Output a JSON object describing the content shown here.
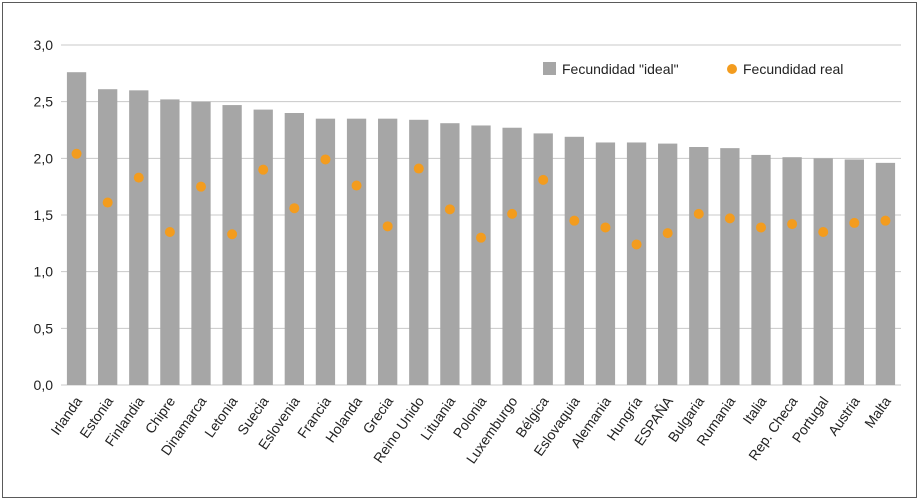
{
  "chart_data": {
    "type": "bar",
    "categories": [
      "Irlanda",
      "Estonia",
      "Finlandia",
      "Chipre",
      "Dinamarca",
      "Letonia",
      "Suecia",
      "Eslovenia",
      "Francia",
      "Holanda",
      "Grecia",
      "Reino Unido",
      "Lituania",
      "Polonia",
      "Luxemburgo",
      "Bélgica",
      "Eslovaquia",
      "Alemania",
      "Hungría",
      "ESPAÑA",
      "Bulgaria",
      "Rumania",
      "Italia",
      "Rep. Checa",
      "Portugal",
      "Austria",
      "Malta"
    ],
    "series": [
      {
        "name": "Fecundidad \"ideal\"",
        "type": "bar",
        "color": "#a6a6a6",
        "values": [
          2.76,
          2.61,
          2.6,
          2.52,
          2.5,
          2.47,
          2.43,
          2.4,
          2.35,
          2.35,
          2.35,
          2.34,
          2.31,
          2.29,
          2.27,
          2.22,
          2.19,
          2.14,
          2.14,
          2.13,
          2.1,
          2.09,
          2.03,
          2.01,
          2.0,
          1.99,
          1.96
        ]
      },
      {
        "name": "Fecundidad real",
        "type": "scatter",
        "color": "#f39c1e",
        "values": [
          2.04,
          1.61,
          1.83,
          1.35,
          1.75,
          1.33,
          1.9,
          1.56,
          1.99,
          1.76,
          1.4,
          1.91,
          1.55,
          1.3,
          1.51,
          1.81,
          1.45,
          1.39,
          1.24,
          1.34,
          1.51,
          1.47,
          1.39,
          1.42,
          1.35,
          1.43,
          1.45
        ]
      }
    ],
    "y_ticks": [
      "0,0",
      "0,5",
      "1,0",
      "1,5",
      "2,0",
      "2,5",
      "3,0"
    ],
    "ylim": [
      0,
      3
    ],
    "grid": true,
    "legend_position": "top-right"
  }
}
